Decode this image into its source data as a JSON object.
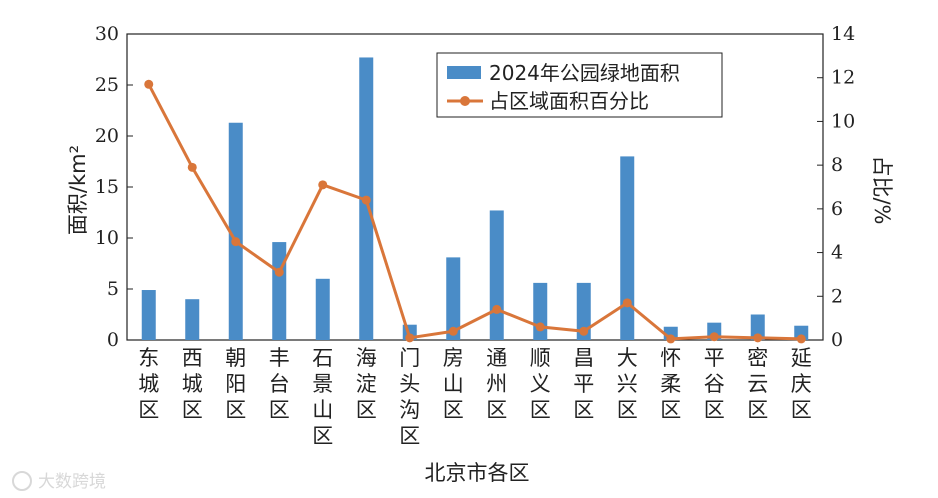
{
  "chart_data": {
    "type": "bar",
    "categories": [
      [
        "东",
        "城",
        "区"
      ],
      [
        "西",
        "城",
        "区"
      ],
      [
        "朝",
        "阳",
        "区"
      ],
      [
        "丰",
        "台",
        "区"
      ],
      [
        "石",
        "景",
        "山",
        "区"
      ],
      [
        "海",
        "淀",
        "区"
      ],
      [
        "门",
        "头",
        "沟",
        "区"
      ],
      [
        "房",
        "山",
        "区"
      ],
      [
        "通",
        "州",
        "区"
      ],
      [
        "顺",
        "义",
        "区"
      ],
      [
        "昌",
        "平",
        "区"
      ],
      [
        "大",
        "兴",
        "区"
      ],
      [
        "怀",
        "柔",
        "区"
      ],
      [
        "平",
        "谷",
        "区"
      ],
      [
        "密",
        "云",
        "区"
      ],
      [
        "延",
        "庆",
        "区"
      ]
    ],
    "series": [
      {
        "name": "2024年公园绿地面积",
        "type": "bar",
        "axis": "left",
        "color": "#4a8cc7",
        "values": [
          4.9,
          4.0,
          21.3,
          9.6,
          6.0,
          27.7,
          1.5,
          8.1,
          12.7,
          5.6,
          5.6,
          18.0,
          1.3,
          1.7,
          2.5,
          1.4
        ]
      },
      {
        "name": "占区域面积百分比",
        "type": "line",
        "axis": "right",
        "color": "#d9763a",
        "values": [
          11.7,
          7.9,
          4.5,
          3.1,
          7.1,
          6.4,
          0.1,
          0.4,
          1.4,
          0.6,
          0.4,
          1.7,
          0.05,
          0.15,
          0.1,
          0.05
        ]
      }
    ],
    "xlabel": "北京市各区",
    "ylabel_left": "面积/km²",
    "ylabel_right": "占比/%",
    "ylim_left": [
      0,
      30
    ],
    "ylim_right": [
      0,
      14
    ],
    "yticks_left": [
      "0",
      "5",
      "10",
      "15",
      "20",
      "25",
      "30"
    ],
    "yticks_right": [
      "0",
      "2",
      "4",
      "6",
      "8",
      "10",
      "12",
      "14"
    ],
    "grid": false,
    "legend_position": "top-right"
  },
  "watermark": "大数跨境"
}
